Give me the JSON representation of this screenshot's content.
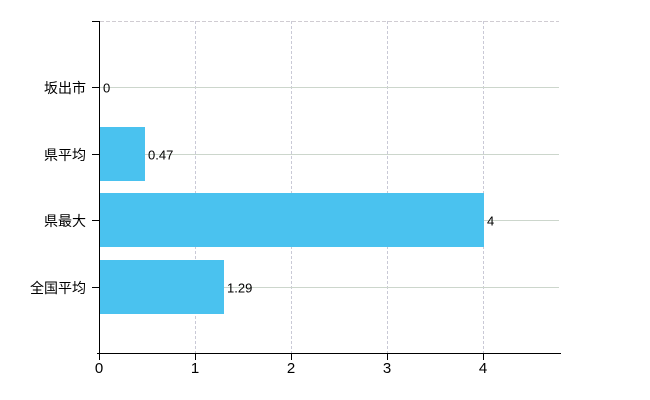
{
  "chart_data": {
    "type": "bar",
    "orientation": "horizontal",
    "title": "",
    "xlabel": "",
    "ylabel": "",
    "categories": [
      "坂出市",
      "県平均",
      "県最大",
      "全国平均"
    ],
    "values": [
      0,
      0.47,
      4,
      1.29
    ],
    "value_labels": [
      "0",
      "0.47",
      "4",
      "1.29"
    ],
    "x_ticks": [
      0,
      1,
      2,
      3,
      4
    ],
    "x_tick_labels": [
      "0",
      "1",
      "2",
      "3",
      "4"
    ],
    "xlim": [
      0,
      4.8
    ],
    "grid": true,
    "legend": false,
    "bar_color": "#4ac2ef",
    "axis_color": "#000000",
    "h_grid_color": "#ccd6cc",
    "v_grid_color": "#c9c9d6",
    "background_color": "#ffffff"
  }
}
